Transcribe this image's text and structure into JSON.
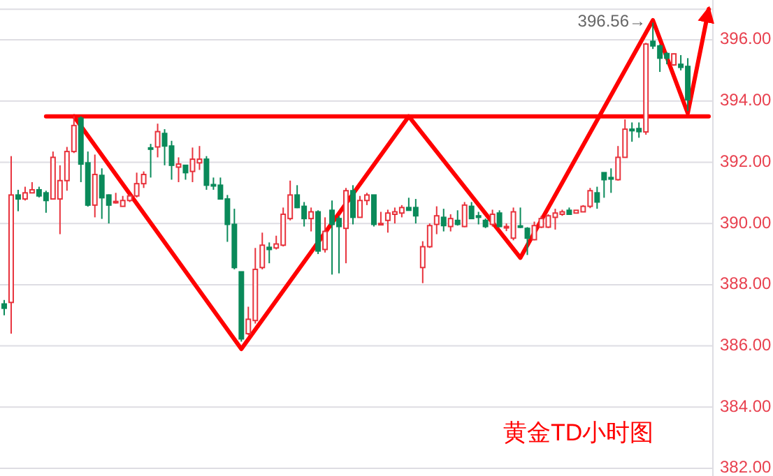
{
  "chart_data": {
    "type": "candlestick",
    "title": "黄金TD小时图",
    "categories": [
      null,
      null,
      null,
      null,
      null,
      null,
      null,
      null,
      null,
      null,
      null,
      null,
      null,
      null,
      null,
      null,
      null,
      null,
      null,
      null,
      null,
      null,
      null,
      null,
      null,
      null,
      null,
      null,
      null,
      null,
      null,
      null,
      null,
      null,
      null,
      null,
      null,
      null,
      null,
      null,
      null,
      null,
      null,
      null,
      null,
      null,
      null,
      null,
      null,
      null,
      null,
      null,
      null,
      null,
      null,
      null,
      null,
      null,
      null,
      null,
      null,
      null,
      null,
      null,
      null,
      null,
      null,
      null,
      null,
      null,
      null,
      null,
      null,
      null,
      null,
      null,
      null,
      null,
      null,
      null,
      null,
      null,
      null,
      null,
      null,
      null,
      null,
      null,
      null,
      null,
      null,
      null,
      null,
      null,
      null,
      null,
      null,
      null,
      null,
      null,
      null,
      null
    ],
    "ohlc": [
      [
        387.37,
        387.5,
        387.0,
        387.23
      ],
      [
        387.42,
        392.2,
        386.4,
        390.93
      ],
      [
        390.93,
        391.1,
        390.4,
        390.8
      ],
      [
        390.8,
        391.2,
        390.75,
        391.0
      ],
      [
        391.0,
        391.35,
        391.0,
        391.1
      ],
      [
        391.1,
        391.2,
        390.85,
        390.9
      ],
      [
        391.0,
        391.07,
        390.35,
        390.75
      ],
      [
        390.8,
        392.35,
        390.8,
        392.16
      ],
      [
        390.8,
        391.9,
        389.65,
        391.4
      ],
      [
        391.4,
        392.5,
        391.07,
        392.35
      ],
      [
        392.35,
        393.5,
        392.3,
        393.2
      ],
      [
        393.44,
        393.5,
        391.35,
        391.94
      ],
      [
        391.98,
        392.35,
        390.55,
        390.6
      ],
      [
        390.6,
        392.25,
        390.2,
        391.6
      ],
      [
        391.57,
        391.8,
        390.15,
        390.84
      ],
      [
        390.93,
        390.95,
        390.0,
        390.6
      ],
      [
        390.68,
        391.0,
        390.65,
        390.72
      ],
      [
        390.56,
        390.9,
        390.55,
        390.75
      ],
      [
        390.75,
        390.95,
        390.7,
        390.9
      ],
      [
        390.9,
        391.66,
        390.85,
        391.3
      ],
      [
        391.3,
        391.7,
        391.16,
        391.6
      ],
      [
        392.47,
        392.6,
        391.5,
        392.43
      ],
      [
        392.5,
        393.26,
        392.16,
        393.0
      ],
      [
        392.94,
        393.08,
        391.9,
        392.53
      ],
      [
        392.53,
        392.7,
        391.43,
        391.9
      ],
      [
        391.84,
        392.16,
        391.35,
        391.94
      ],
      [
        391.9,
        391.9,
        391.43,
        391.66
      ],
      [
        391.7,
        392.48,
        391.35,
        392.1
      ],
      [
        391.98,
        392.53,
        391.75,
        392.1
      ],
      [
        392.1,
        392.2,
        391.1,
        391.25
      ],
      [
        391.27,
        391.5,
        391.1,
        391.23
      ],
      [
        391.25,
        391.5,
        390.8,
        390.8
      ],
      [
        390.8,
        390.93,
        389.4,
        389.97
      ],
      [
        389.97,
        390.48,
        388.5,
        388.56
      ],
      [
        388.42,
        388.42,
        386.14,
        386.23
      ],
      [
        386.4,
        387.28,
        386.35,
        386.87
      ],
      [
        386.83,
        389.2,
        386.73,
        388.5
      ],
      [
        388.56,
        389.7,
        388.5,
        389.29
      ],
      [
        389.22,
        389.38,
        388.7,
        389.15
      ],
      [
        389.2,
        389.6,
        389.15,
        389.33
      ],
      [
        389.29,
        390.52,
        389.25,
        390.3
      ],
      [
        390.16,
        391.4,
        390.1,
        390.93
      ],
      [
        390.93,
        391.25,
        390.5,
        390.52
      ],
      [
        390.56,
        390.7,
        389.9,
        390.16
      ],
      [
        390.16,
        390.52,
        389.74,
        390.38
      ],
      [
        390.38,
        390.43,
        389.0,
        389.1
      ],
      [
        389.15,
        390.2,
        389.05,
        389.74
      ],
      [
        390.43,
        390.75,
        388.33,
        389.97
      ],
      [
        390.16,
        390.25,
        388.37,
        389.9
      ],
      [
        389.84,
        391.16,
        388.7,
        391.07
      ],
      [
        391.07,
        391.25,
        389.97,
        390.2
      ],
      [
        390.2,
        390.9,
        390.2,
        390.75
      ],
      [
        390.75,
        391.0,
        390.6,
        390.93
      ],
      [
        390.93,
        390.93,
        389.9,
        389.97
      ],
      [
        389.98,
        390.38,
        389.97,
        390.0
      ],
      [
        390.1,
        390.45,
        389.7,
        390.34
      ],
      [
        390.3,
        390.52,
        390.0,
        390.38
      ],
      [
        390.34,
        390.6,
        390.2,
        390.52
      ],
      [
        390.52,
        390.84,
        390.43,
        390.43
      ],
      [
        390.52,
        390.8,
        390.0,
        390.25
      ],
      [
        388.56,
        389.42,
        388.05,
        389.24
      ],
      [
        389.24,
        390.0,
        389.2,
        389.93
      ],
      [
        389.97,
        390.56,
        389.65,
        390.25
      ],
      [
        390.2,
        390.48,
        389.74,
        389.93
      ],
      [
        389.9,
        390.3,
        389.74,
        390.16
      ],
      [
        390.1,
        390.43,
        389.93,
        389.97
      ],
      [
        389.9,
        390.7,
        389.88,
        390.6
      ],
      [
        390.56,
        390.7,
        390.16,
        390.16
      ],
      [
        390.25,
        390.38,
        389.97,
        390.2
      ],
      [
        390.1,
        390.16,
        389.85,
        389.9
      ],
      [
        389.97,
        390.45,
        389.9,
        390.3
      ],
      [
        390.34,
        390.43,
        389.88,
        389.9
      ],
      [
        389.88,
        390.0,
        389.75,
        389.9
      ],
      [
        389.52,
        390.52,
        389.45,
        390.38
      ],
      [
        389.92,
        390.52,
        389.85,
        389.88
      ],
      [
        389.84,
        389.88,
        388.97,
        389.52
      ],
      [
        389.47,
        390.06,
        389.45,
        389.93
      ],
      [
        389.88,
        390.25,
        389.85,
        390.16
      ],
      [
        389.88,
        390.3,
        389.85,
        390.25
      ],
      [
        390.2,
        390.48,
        389.8,
        390.34
      ],
      [
        390.3,
        390.45,
        390.25,
        390.38
      ],
      [
        390.43,
        390.52,
        390.3,
        390.3
      ],
      [
        390.34,
        390.43,
        390.34,
        390.43
      ],
      [
        390.38,
        390.6,
        390.38,
        390.56
      ],
      [
        390.56,
        391.16,
        390.5,
        391.07
      ],
      [
        391.0,
        391.2,
        390.48,
        390.7
      ],
      [
        391.66,
        391.66,
        390.84,
        391.43
      ],
      [
        391.5,
        391.8,
        391.0,
        391.45
      ],
      [
        391.43,
        392.53,
        391.4,
        392.16
      ],
      [
        392.16,
        393.4,
        392.16,
        393.08
      ],
      [
        393.08,
        393.3,
        392.67,
        393.03
      ],
      [
        393.1,
        393.3,
        392.8,
        393.0
      ],
      [
        392.99,
        395.9,
        392.9,
        395.86
      ],
      [
        395.95,
        396.56,
        395.7,
        395.8
      ],
      [
        395.8,
        395.85,
        394.95,
        395.4
      ],
      [
        395.55,
        395.6,
        395.2,
        395.4
      ],
      [
        395.18,
        395.55,
        395.15,
        395.54
      ],
      [
        395.2,
        395.5,
        395.0,
        395.1
      ],
      [
        395.13,
        395.4,
        393.67,
        394.04
      ],
      null,
      null,
      null
    ],
    "series": [
      {
        "type": "line",
        "color": "#ff0000",
        "values": [
          null,
          null,
          null,
          null,
          null,
          null,
          393.5,
          null,
          null,
          null,
          null,
          null,
          null,
          null,
          null,
          null,
          null,
          null,
          null,
          null,
          null,
          null,
          null,
          null,
          null,
          null,
          null,
          null,
          null,
          null,
          null,
          null,
          null,
          null,
          null,
          null,
          null,
          null,
          null,
          null,
          null,
          null,
          null,
          null,
          null,
          null,
          null,
          null,
          null,
          null,
          null,
          null,
          null,
          null,
          null,
          null,
          null,
          null,
          null,
          null,
          null,
          null,
          null,
          null,
          null,
          null,
          null,
          null,
          null,
          null,
          null,
          null,
          null,
          null,
          null,
          null,
          null,
          null,
          null,
          null,
          null,
          null,
          null,
          null,
          null,
          null,
          null,
          null,
          null,
          null,
          null,
          null,
          null,
          null,
          null,
          null,
          null,
          null,
          null,
          null,
          null,
          393.5
        ]
      },
      {
        "type": "line",
        "color": "#ff0000",
        "values": [
          null,
          null,
          null,
          null,
          null,
          null,
          null,
          null,
          null,
          null,
          393.5,
          null,
          null,
          null,
          null,
          null,
          null,
          null,
          null,
          null,
          null,
          null,
          null,
          null,
          null,
          null,
          null,
          null,
          null,
          null,
          null,
          null,
          null,
          null,
          385.9,
          null,
          null,
          null,
          null,
          null,
          null,
          null,
          null,
          null,
          null,
          null,
          null,
          null,
          null,
          null,
          null,
          null,
          null,
          null,
          null,
          null,
          null,
          null,
          393.5,
          null,
          null,
          null,
          null,
          null,
          null,
          null,
          null,
          null,
          null,
          null,
          null,
          null,
          null,
          null,
          388.88,
          null,
          null,
          null,
          null,
          null,
          null,
          null,
          null,
          null,
          null,
          null,
          null,
          null,
          null,
          null,
          null,
          null,
          null,
          396.64,
          null,
          null,
          null,
          null,
          393.6,
          null,
          null,
          397.0
        ]
      }
    ],
    "annotations": [
      "396.56→"
    ],
    "ylim": [
      381.75,
      397.3
    ],
    "yticks": [
      {
        "value": 382,
        "label": "382.00"
      },
      {
        "value": 384,
        "label": "384.00"
      },
      {
        "value": 386,
        "label": "386.00"
      },
      {
        "value": 388,
        "label": "388.00"
      },
      {
        "value": 390,
        "label": "390.00"
      },
      {
        "value": 392,
        "label": "392.00"
      },
      {
        "value": 394,
        "label": "394.00"
      },
      {
        "value": 396,
        "label": "396.00"
      },
      {
        "value": 397,
        "label": null
      }
    ],
    "grid": true
  }
}
